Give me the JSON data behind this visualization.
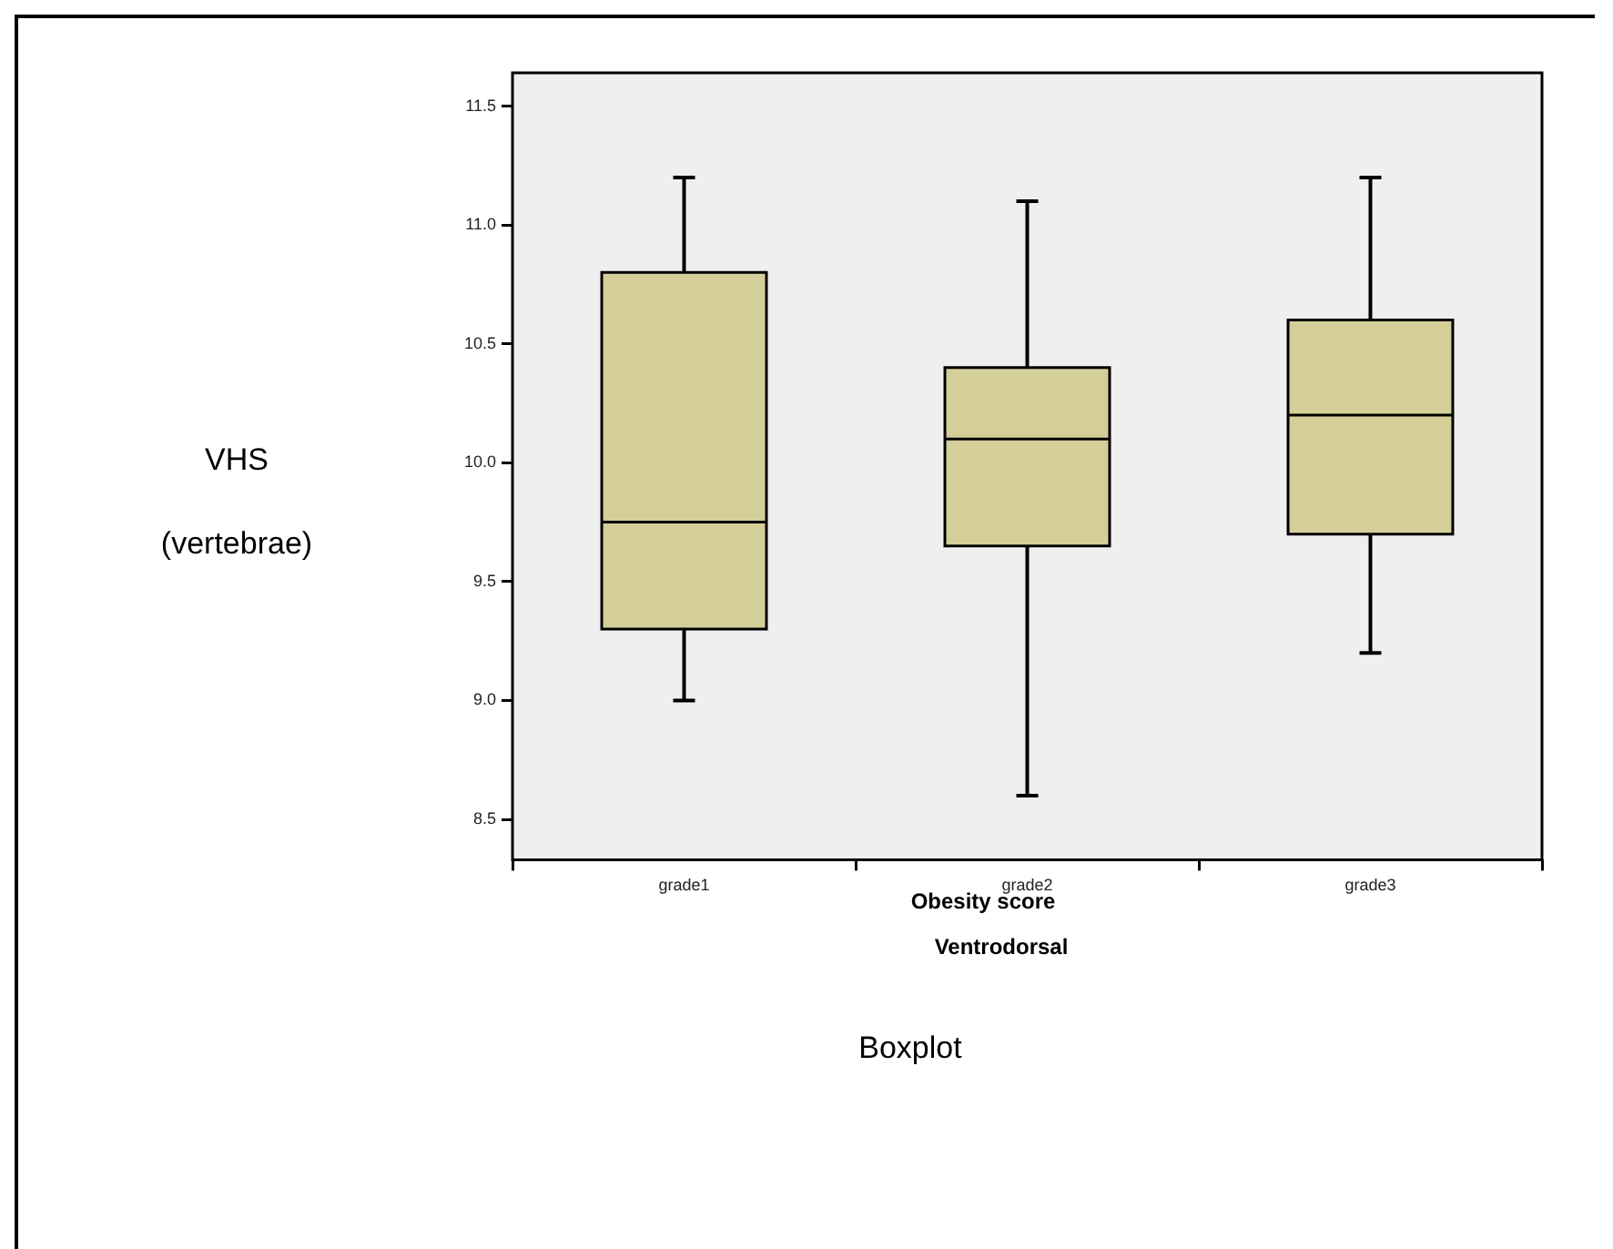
{
  "chart_data": {
    "type": "box",
    "ylabel": "VHS\n(vertebrae)",
    "xlabel": "Obesity score",
    "subtitle": "Ventrodorsal",
    "title": "Boxplot",
    "categories": [
      "grade1",
      "grade2",
      "grade3"
    ],
    "series": [
      {
        "color": "#d4cf98",
        "boxes": [
          {
            "low": 9.0,
            "q1": 9.3,
            "median": 9.75,
            "q3": 10.8,
            "high": 11.2
          },
          {
            "low": 8.6,
            "q1": 9.65,
            "median": 10.1,
            "q3": 10.4,
            "high": 11.1
          },
          {
            "low": 9.2,
            "q1": 9.7,
            "median": 10.2,
            "q3": 10.6,
            "high": 11.2
          }
        ]
      }
    ],
    "ylim": [
      8.33,
      11.64
    ],
    "yticks": [
      {
        "value": 8.5,
        "label": "8.5"
      },
      {
        "value": 9,
        "label": "9.0"
      },
      {
        "value": 9.5,
        "label": "9.5"
      },
      {
        "value": 10,
        "label": "10.0"
      },
      {
        "value": 10.5,
        "label": "10.5"
      },
      {
        "value": 11,
        "label": "11.0"
      },
      {
        "value": 11.5,
        "label": "11.5"
      }
    ],
    "grid": false,
    "legend": false
  }
}
